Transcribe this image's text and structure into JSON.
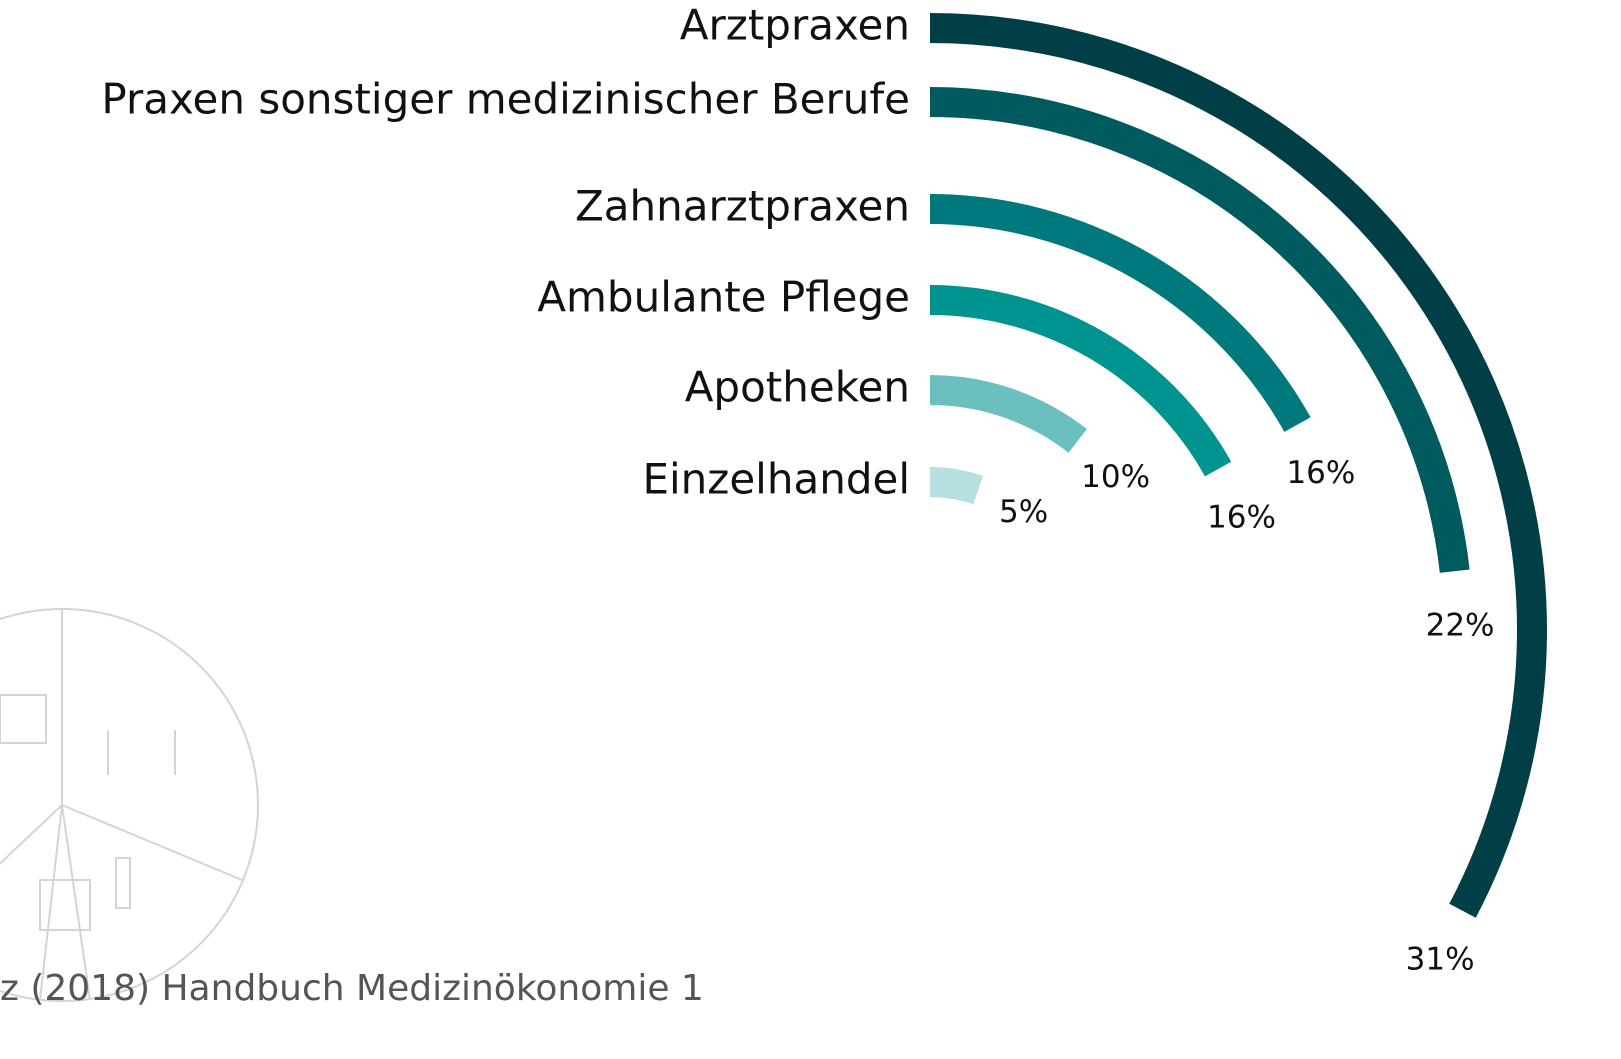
{
  "chart_data": {
    "type": "radial_bar",
    "categories": [
      "Arztpraxen",
      "Praxen sonstiger medizinischer Berufe",
      "Zahnarztpraxen",
      "Ambulante Pflege",
      "Apotheken",
      "Einzelhandel"
    ],
    "values": [
      31,
      22,
      16,
      16,
      10,
      5
    ],
    "value_labels": [
      "31%",
      "22%",
      "16%",
      "16%",
      "10%",
      "5%"
    ],
    "colors": [
      "#003f45",
      "#005b5f",
      "#00797c",
      "#009491",
      "#6bbfbf",
      "#b5dfe0"
    ],
    "source": "z (2018) Handbuch Medizinökonomie 1"
  }
}
